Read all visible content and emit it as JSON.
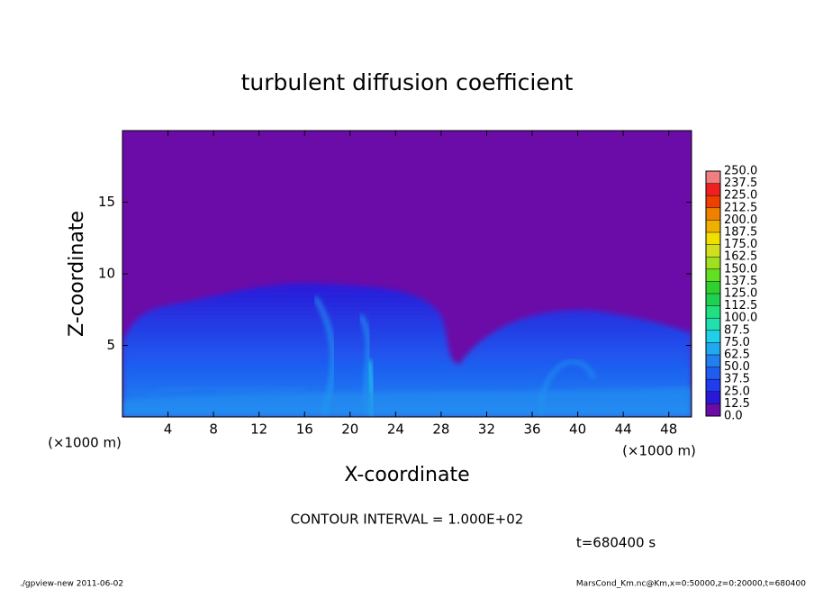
{
  "chart_data": {
    "type": "contour",
    "title": "turbulent diffusion coefficient",
    "xlabel": "X-coordinate",
    "ylabel": "Z-coordinate",
    "x_unit": "(×1000 m)",
    "y_unit": "(×1000 m)",
    "xlim": [
      0,
      50
    ],
    "ylim": [
      0,
      20
    ],
    "xticks": [
      4,
      8,
      12,
      16,
      20,
      24,
      28,
      32,
      36,
      40,
      44,
      48
    ],
    "yticks": [
      5,
      10,
      15
    ],
    "levels": [
      {
        "value": 0,
        "label": "0.0"
      },
      {
        "value": 12.5,
        "label": "12.5"
      },
      {
        "value": 25,
        "label": "25.0"
      },
      {
        "value": 37.5,
        "label": "37.5"
      },
      {
        "value": 50,
        "label": "50.0"
      },
      {
        "value": 62.5,
        "label": "62.5"
      },
      {
        "value": 75,
        "label": "75.0"
      },
      {
        "value": 87.5,
        "label": "87.5"
      },
      {
        "value": 100,
        "label": "100.0"
      },
      {
        "value": 112.5,
        "label": "112.5"
      },
      {
        "value": 125,
        "label": "125.0"
      },
      {
        "value": 137.5,
        "label": "137.5"
      },
      {
        "value": 150,
        "label": "150.0"
      },
      {
        "value": 162.5,
        "label": "162.5"
      },
      {
        "value": 175,
        "label": "175.0"
      },
      {
        "value": 187.5,
        "label": "187.5"
      },
      {
        "value": 200,
        "label": "200.0"
      },
      {
        "value": 212.5,
        "label": "212.5"
      },
      {
        "value": 225,
        "label": "225.0"
      },
      {
        "value": 237.5,
        "label": "237.5"
      },
      {
        "value": 250,
        "label": "250.0"
      }
    ],
    "colors": [
      "#6c0ca8",
      "#2a18d8",
      "#1f3cf0",
      "#1f5cf0",
      "#2080f0",
      "#20a8f0",
      "#20d0e8",
      "#20e0b0",
      "#20e080",
      "#20d050",
      "#30d030",
      "#60e020",
      "#a0e020",
      "#d0e020",
      "#f0e000",
      "#f0b000",
      "#f08000",
      "#f04000",
      "#f02020",
      "#f08080"
    ],
    "contour_interval": "CONTOUR INTERVAL = 1.000E+02",
    "time_label": "t=680400 s",
    "footer_left": "./gpview-new  2011-06-02",
    "footer_right": "MarsCond_Km.nc@Km,x=0:50000,z=0:20000,t=680400"
  }
}
